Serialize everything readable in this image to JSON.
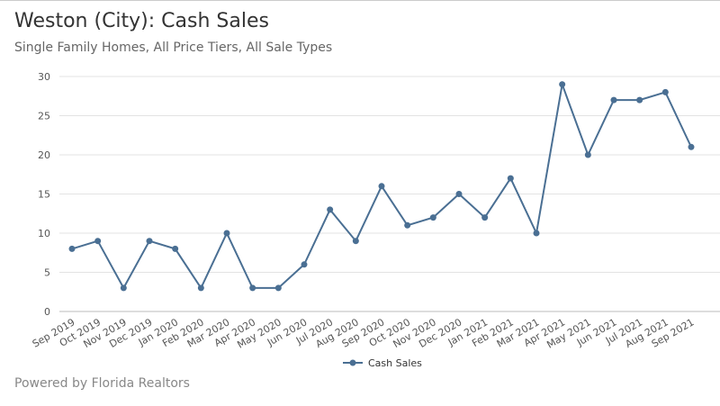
{
  "chart_data": {
    "type": "line",
    "title": "Weston (City): Cash Sales",
    "subtitle": "Single Family Homes, All Price Tiers, All Sale Types",
    "categories": [
      "Sep 2019",
      "Oct 2019",
      "Nov 2019",
      "Dec 2019",
      "Jan 2020",
      "Feb 2020",
      "Mar 2020",
      "Apr 2020",
      "May 2020",
      "Jun 2020",
      "Jul 2020",
      "Aug 2020",
      "Sep 2020",
      "Oct 2020",
      "Nov 2020",
      "Dec 2020",
      "Jan 2021",
      "Feb 2021",
      "Mar 2021",
      "Apr 2021",
      "May 2021",
      "Jun 2021",
      "Jul 2021",
      "Aug 2021",
      "Sep 2021"
    ],
    "series": [
      {
        "name": "Cash Sales",
        "values": [
          8,
          9,
          3,
          9,
          8,
          3,
          10,
          3,
          3,
          6,
          13,
          9,
          16,
          11,
          12,
          15,
          12,
          17,
          10,
          29,
          20,
          27,
          27,
          28,
          21
        ],
        "color": "#4a6f93"
      }
    ],
    "yticks": [
      0,
      5,
      10,
      15,
      20,
      25,
      30
    ],
    "ylim": [
      0,
      30
    ],
    "grid": true,
    "legend": "bottom",
    "xlabel": "",
    "ylabel": ""
  },
  "footer": "Powered by Florida Realtors"
}
